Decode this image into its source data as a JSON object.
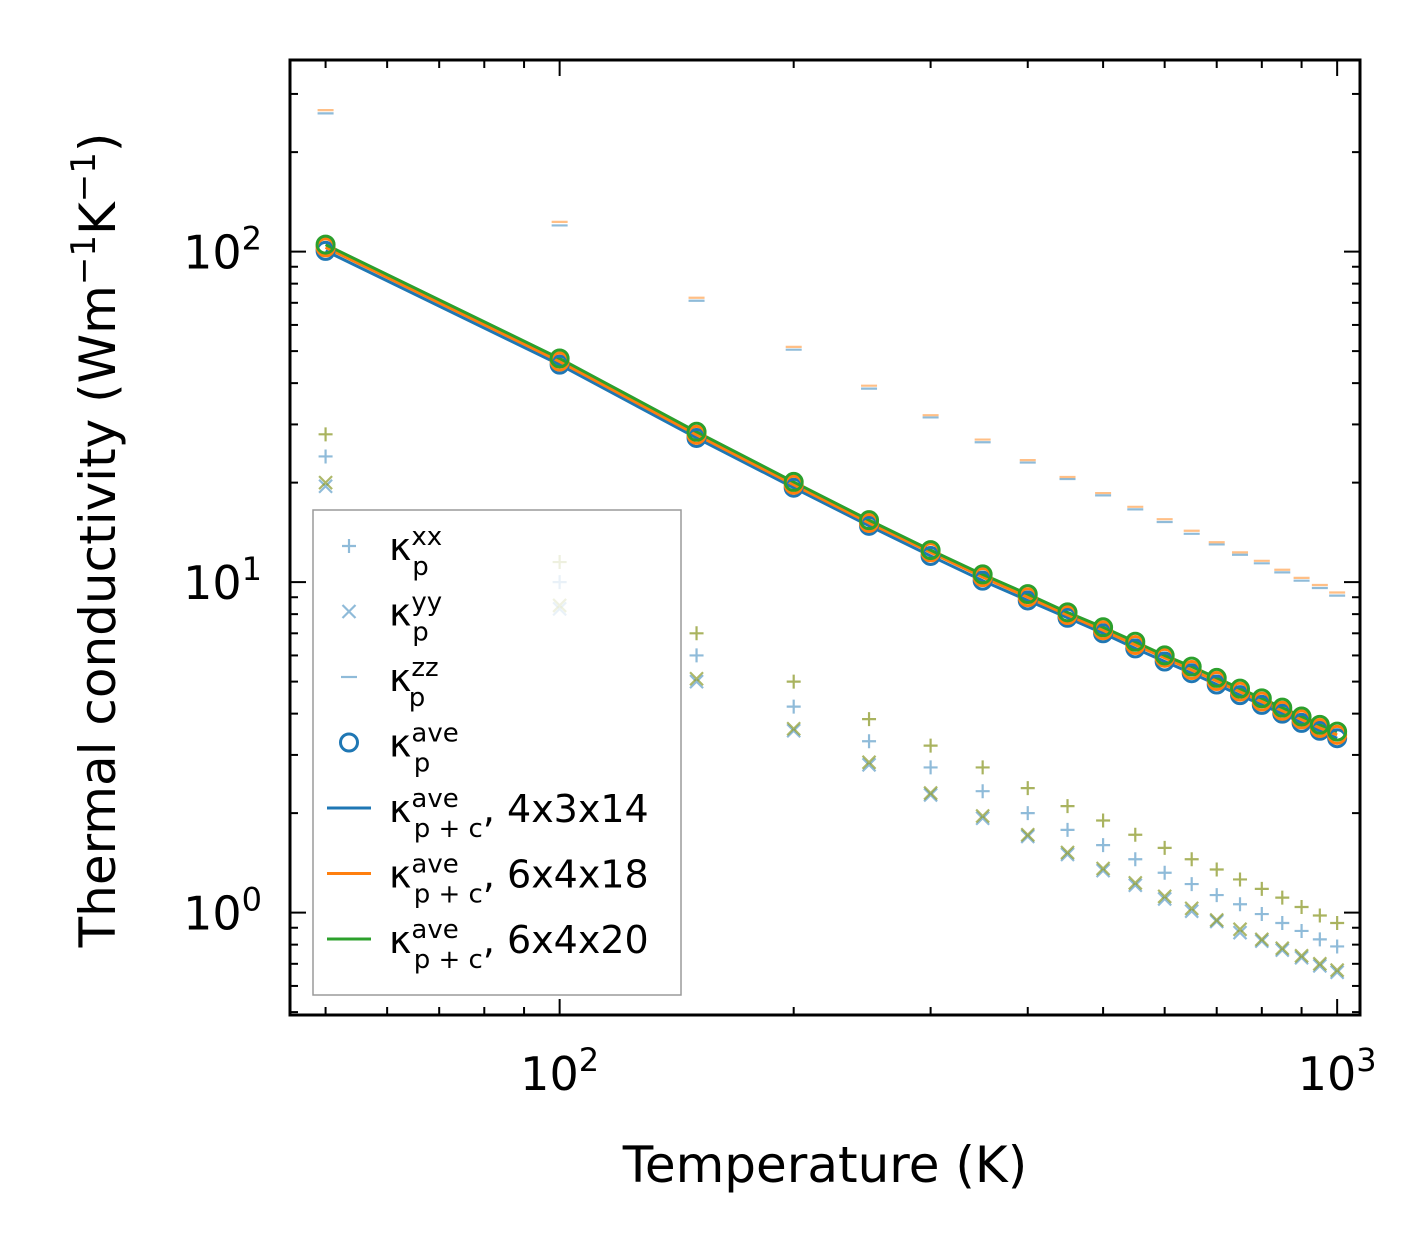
{
  "chart_data": {
    "type": "scatter",
    "xscale": "log",
    "yscale": "log",
    "xlabel": "Temperature (K)",
    "ylabel": {
      "base": "Thermal conductivity (Wm",
      "sup1": "−1",
      "mid": "K",
      "sup2": "−1",
      "end": ")"
    },
    "xlim": [
      45,
      1070
    ],
    "ylim": [
      0.49,
      380
    ],
    "xticks": [
      {
        "value": 100,
        "base": "10",
        "exp": "2"
      },
      {
        "value": 1000,
        "base": "10",
        "exp": "3"
      }
    ],
    "yticks": [
      {
        "value": 1,
        "base": "10",
        "exp": "0"
      },
      {
        "value": 10,
        "base": "10",
        "exp": "1"
      },
      {
        "value": 100,
        "base": "10",
        "exp": "2"
      }
    ],
    "x": [
      50,
      100,
      150,
      200,
      250,
      300,
      350,
      400,
      450,
      500,
      550,
      600,
      650,
      700,
      750,
      800,
      850,
      900,
      950,
      1000
    ],
    "series": [
      {
        "name": "kxx_blue",
        "marker": "plus",
        "color": "#1f77b4",
        "alpha": 0.5,
        "values": [
          24.0,
          10.0,
          6.0,
          4.2,
          3.3,
          2.75,
          2.33,
          2.0,
          1.78,
          1.6,
          1.45,
          1.32,
          1.22,
          1.13,
          1.06,
          0.99,
          0.93,
          0.88,
          0.83,
          0.79
        ]
      },
      {
        "name": "kxx_olive",
        "marker": "plus",
        "color": "#8c9a2a",
        "alpha": 0.75,
        "values": [
          28.0,
          11.5,
          7.0,
          5.0,
          3.85,
          3.2,
          2.75,
          2.38,
          2.1,
          1.9,
          1.72,
          1.57,
          1.45,
          1.35,
          1.26,
          1.18,
          1.11,
          1.04,
          0.98,
          0.93
        ]
      },
      {
        "name": "kyy_blue",
        "marker": "x",
        "color": "#1f77b4",
        "alpha": 0.5,
        "values": [
          19.5,
          8.3,
          5.0,
          3.55,
          2.8,
          2.27,
          1.93,
          1.7,
          1.5,
          1.34,
          1.21,
          1.1,
          1.01,
          0.94,
          0.87,
          0.82,
          0.77,
          0.73,
          0.69,
          0.66
        ]
      },
      {
        "name": "kyy_olive",
        "marker": "x",
        "color": "#8c9a2a",
        "alpha": 0.7,
        "values": [
          20.0,
          8.5,
          5.1,
          3.6,
          2.85,
          2.3,
          1.96,
          1.72,
          1.52,
          1.36,
          1.23,
          1.12,
          1.03,
          0.95,
          0.89,
          0.83,
          0.78,
          0.74,
          0.7,
          0.67
        ]
      },
      {
        "name": "kzz_blue",
        "marker": "hline",
        "color": "#1f77b4",
        "alpha": 0.5,
        "values": [
          262,
          120,
          71,
          50.5,
          38.5,
          31.5,
          26.5,
          23.0,
          20.5,
          18.3,
          16.6,
          15.2,
          14.0,
          13.0,
          12.1,
          11.4,
          10.7,
          10.1,
          9.6,
          9.1
        ]
      },
      {
        "name": "kzz_orange",
        "marker": "hline",
        "color": "#ff7f0e",
        "alpha": 0.5,
        "values": [
          268,
          123,
          72.5,
          51.5,
          39.3,
          32.0,
          27.0,
          23.4,
          20.8,
          18.6,
          16.9,
          15.5,
          14.3,
          13.2,
          12.3,
          11.6,
          10.9,
          10.3,
          9.8,
          9.3
        ]
      },
      {
        "name": "kave_blue",
        "marker": "circle",
        "color": "#1f77b4",
        "alpha": 1,
        "values": [
          100.5,
          45.5,
          27.3,
          19.3,
          14.8,
          12.0,
          10.1,
          8.8,
          7.8,
          7.0,
          6.3,
          5.75,
          5.3,
          4.9,
          4.55,
          4.25,
          4.0,
          3.75,
          3.55,
          3.37
        ]
      },
      {
        "name": "kave_orange",
        "marker": "circle",
        "color": "#ff7f0e",
        "alpha": 1,
        "values": [
          103.0,
          46.5,
          27.9,
          19.7,
          15.1,
          12.3,
          10.35,
          9.0,
          7.95,
          7.15,
          6.45,
          5.9,
          5.42,
          5.02,
          4.66,
          4.35,
          4.08,
          3.84,
          3.62,
          3.45
        ]
      },
      {
        "name": "kave_green",
        "marker": "circle",
        "color": "#2ca02c",
        "alpha": 1,
        "values": [
          105.0,
          47.5,
          28.5,
          20.1,
          15.4,
          12.5,
          10.55,
          9.2,
          8.1,
          7.3,
          6.6,
          6.0,
          5.55,
          5.13,
          4.76,
          4.45,
          4.17,
          3.92,
          3.7,
          3.53
        ]
      },
      {
        "name": "4x3x14",
        "marker": "line",
        "color": "#1f77b4",
        "alpha": 1,
        "values": [
          100.5,
          45.5,
          27.3,
          19.3,
          14.8,
          12.0,
          10.1,
          8.8,
          7.8,
          7.0,
          6.3,
          5.75,
          5.3,
          4.9,
          4.55,
          4.25,
          4.0,
          3.75,
          3.55,
          3.37
        ]
      },
      {
        "name": "6x4x18",
        "marker": "line",
        "color": "#ff7f0e",
        "alpha": 1,
        "values": [
          103.0,
          46.5,
          27.9,
          19.7,
          15.1,
          12.3,
          10.35,
          9.0,
          7.95,
          7.15,
          6.45,
          5.9,
          5.42,
          5.02,
          4.66,
          4.35,
          4.08,
          3.84,
          3.62,
          3.45
        ]
      },
      {
        "name": "6x4x20",
        "marker": "line",
        "color": "#2ca02c",
        "alpha": 1,
        "values": [
          105.0,
          47.5,
          28.5,
          20.1,
          15.4,
          12.5,
          10.55,
          9.2,
          8.1,
          7.3,
          6.6,
          6.0,
          5.55,
          5.13,
          4.76,
          4.45,
          4.17,
          3.92,
          3.7,
          3.53
        ]
      }
    ],
    "legend": {
      "placement": "lower-left",
      "entries": [
        {
          "marker": "plus",
          "color": "#1f77b4",
          "alpha": 0.5,
          "base": "κ",
          "sup": "xx",
          "sub": "p",
          "suffix": ""
        },
        {
          "marker": "x",
          "color": "#1f77b4",
          "alpha": 0.5,
          "base": "κ",
          "sup": "yy",
          "sub": "p",
          "suffix": ""
        },
        {
          "marker": "hline",
          "color": "#1f77b4",
          "alpha": 0.5,
          "base": "κ",
          "sup": "zz",
          "sub": "p",
          "suffix": ""
        },
        {
          "marker": "circle",
          "color": "#1f77b4",
          "alpha": 1,
          "base": "κ",
          "sup": "ave",
          "sub": "p",
          "suffix": ""
        },
        {
          "marker": "line",
          "color": "#1f77b4",
          "alpha": 1,
          "base": "κ",
          "sup": "ave",
          "sub": "p + c",
          "suffix": ", 4x3x14"
        },
        {
          "marker": "line",
          "color": "#ff7f0e",
          "alpha": 1,
          "base": "κ",
          "sup": "ave",
          "sub": "p + c",
          "suffix": ", 6x4x18"
        },
        {
          "marker": "line",
          "color": "#2ca02c",
          "alpha": 1,
          "base": "κ",
          "sup": "ave",
          "sub": "p + c",
          "suffix": ", 6x4x20"
        }
      ]
    }
  }
}
